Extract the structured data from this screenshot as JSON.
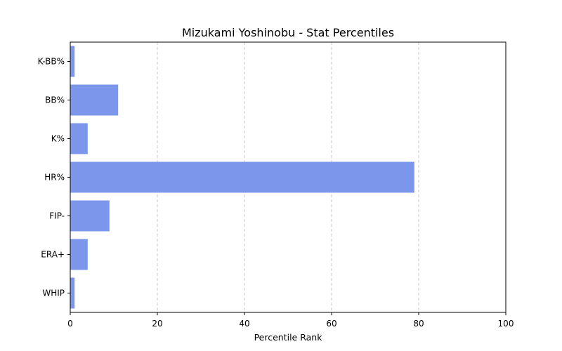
{
  "chart_data": {
    "type": "bar",
    "orientation": "horizontal",
    "title": "Mizukami Yoshinobu - Stat Percentiles",
    "xlabel": "Percentile Rank",
    "ylabel": "",
    "categories": [
      "WHIP",
      "ERA+",
      "FIP-",
      "HR%",
      "K%",
      "BB%",
      "K-BB%"
    ],
    "values": [
      1,
      4,
      9,
      79,
      4,
      11,
      1
    ],
    "xlim": [
      0,
      100
    ],
    "xticks": [
      0,
      20,
      40,
      60,
      80,
      100
    ],
    "grid": "x dashed",
    "bar_color": "#7b96ea"
  }
}
